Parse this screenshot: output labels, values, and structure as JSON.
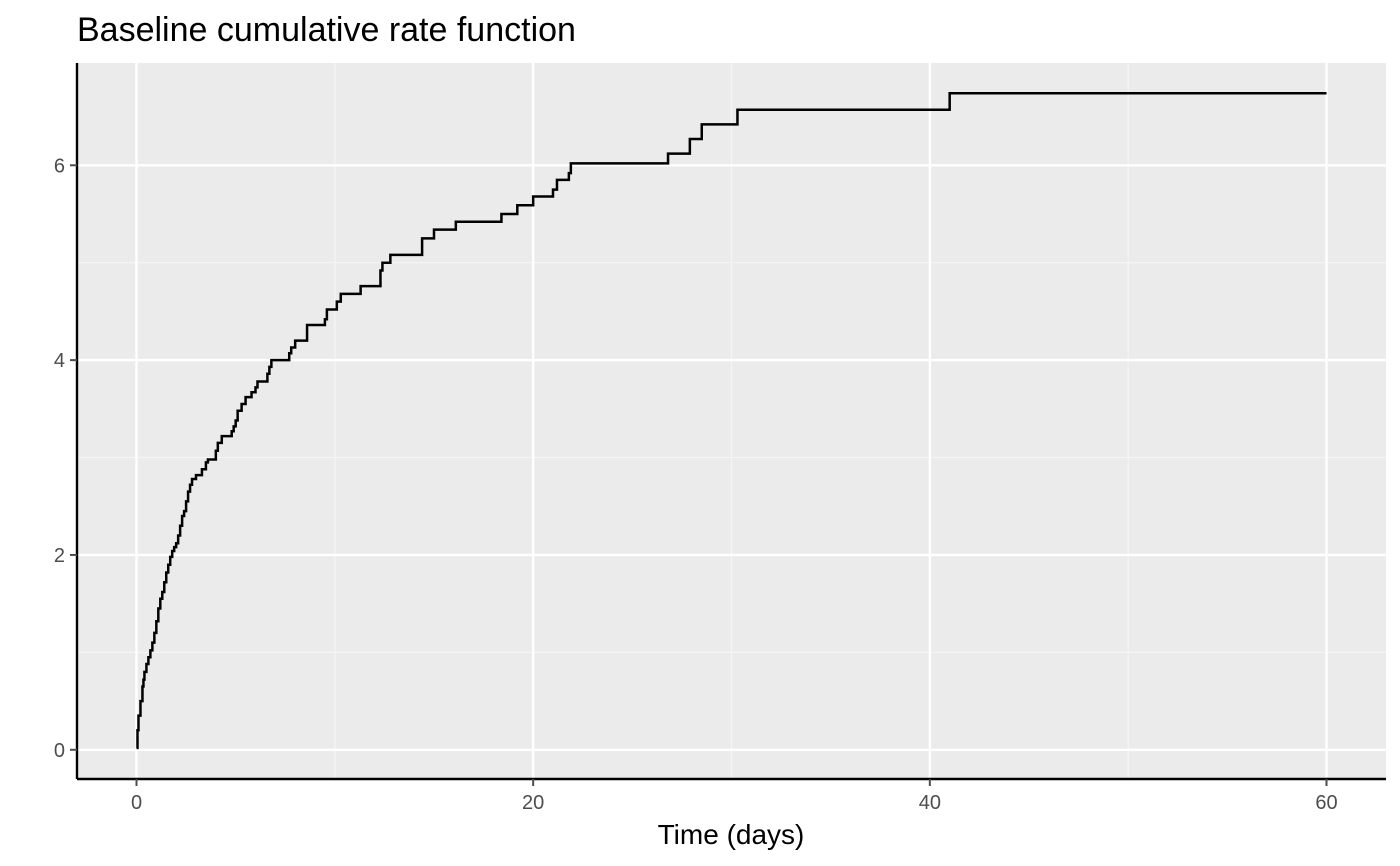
{
  "chart_data": {
    "type": "line",
    "step": true,
    "title": "Baseline cumulative rate function",
    "xlabel": "Time (days)",
    "ylabel": "",
    "xlim": [
      -3,
      63
    ],
    "ylim": [
      -0.3,
      7.05
    ],
    "x_ticks": [
      0,
      20,
      40,
      60
    ],
    "x_tick_labels": [
      "0",
      "20",
      "40",
      "60"
    ],
    "x_minor_ticks": [
      10,
      30,
      50
    ],
    "y_ticks": [
      0,
      2,
      4,
      6
    ],
    "y_tick_labels": [
      "0",
      "2",
      "4",
      "6"
    ],
    "y_minor_ticks": [
      1,
      3,
      5
    ],
    "grid": true,
    "legend": "none",
    "colors": {
      "panel_background": "#ebebeb",
      "grid_major": "#ffffff",
      "grid_minor": "#f5f5f5",
      "line": "#000000",
      "axis": "#000000",
      "tick_label": "#4d4d4d"
    },
    "series": [
      {
        "x": [
          0.0,
          0.05,
          0.1,
          0.2,
          0.3,
          0.35,
          0.4,
          0.5,
          0.6,
          0.7,
          0.8,
          0.9,
          1.0,
          1.1,
          1.2,
          1.3,
          1.4,
          1.5,
          1.6,
          1.7,
          1.8,
          1.9,
          2.0,
          2.1,
          2.2,
          2.3,
          2.4,
          2.5,
          2.6,
          2.7,
          2.8,
          3.0,
          3.3,
          3.5,
          3.6,
          4.0,
          4.1,
          4.3,
          4.8,
          4.9,
          5.0,
          5.1,
          5.3,
          5.5,
          5.8,
          6.0,
          6.1,
          6.6,
          6.7,
          6.8,
          7.7,
          7.8,
          8.0,
          8.6,
          9.5,
          9.6,
          10.1,
          10.3,
          11.3,
          12.3,
          12.4,
          12.8,
          14.4,
          15.0,
          16.1,
          18.4,
          19.2,
          20.0,
          21.0,
          21.2,
          21.8,
          21.9,
          26.8,
          27.9,
          28.5,
          30.3,
          41.0,
          60.0
        ],
        "y": [
          0.02,
          0.2,
          0.35,
          0.5,
          0.65,
          0.72,
          0.8,
          0.88,
          0.95,
          1.02,
          1.1,
          1.2,
          1.32,
          1.45,
          1.55,
          1.62,
          1.72,
          1.82,
          1.9,
          1.98,
          2.04,
          2.08,
          2.12,
          2.2,
          2.3,
          2.4,
          2.45,
          2.55,
          2.65,
          2.72,
          2.78,
          2.82,
          2.88,
          2.95,
          2.98,
          3.07,
          3.15,
          3.22,
          3.27,
          3.32,
          3.38,
          3.48,
          3.55,
          3.62,
          3.67,
          3.72,
          3.78,
          3.86,
          3.93,
          4.0,
          4.07,
          4.13,
          4.2,
          4.36,
          4.42,
          4.52,
          4.6,
          4.68,
          4.76,
          4.92,
          5.0,
          5.08,
          5.25,
          5.34,
          5.42,
          5.5,
          5.59,
          5.68,
          5.75,
          5.85,
          5.92,
          6.02,
          6.12,
          6.27,
          6.42,
          6.57,
          6.74,
          6.74
        ]
      }
    ]
  }
}
